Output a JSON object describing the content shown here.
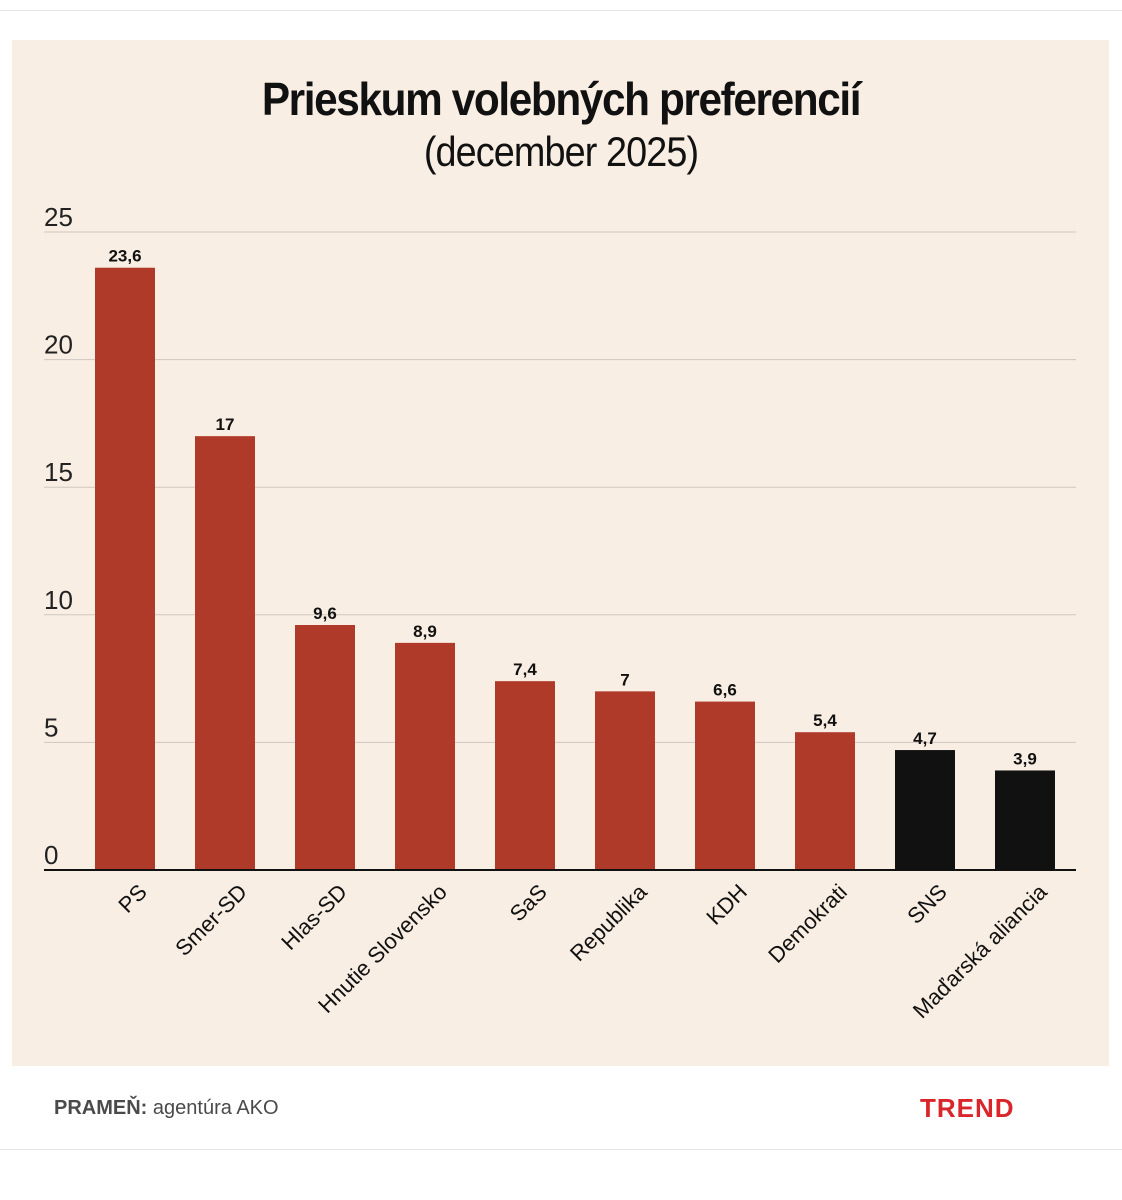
{
  "header": {
    "title": "Prieskum volebných preferencií",
    "subtitle": "(december 2025)"
  },
  "chart_data": {
    "type": "bar",
    "title": "Prieskum volebných preferencií",
    "subtitle": "(december 2025)",
    "xlabel": "",
    "ylabel": "",
    "ylim": [
      0,
      25
    ],
    "yticks": [
      0,
      5,
      10,
      15,
      20,
      25
    ],
    "grid": true,
    "categories": [
      "PS",
      "Smer-SD",
      "Hlas-SD",
      "Hnutie Slovensko",
      "SaS",
      "Republika",
      "KDH",
      "Demokrati",
      "SNS",
      "Maďarská aliancia"
    ],
    "values": [
      23.6,
      17,
      9.6,
      8.9,
      7.4,
      7,
      6.6,
      5.4,
      4.7,
      3.9
    ],
    "value_labels": [
      "23,6",
      "17",
      "9,6",
      "8,9",
      "7,4",
      "7",
      "6,6",
      "5,4",
      "4,7",
      "3,9"
    ],
    "colors": [
      "#b03a2a",
      "#b03a2a",
      "#b03a2a",
      "#b03a2a",
      "#b03a2a",
      "#b03a2a",
      "#b03a2a",
      "#b03a2a",
      "#111111",
      "#111111"
    ]
  },
  "footer": {
    "source_label": "PRAMEŇ:",
    "source_value": "agentúra AKO",
    "brand": "TREND"
  }
}
